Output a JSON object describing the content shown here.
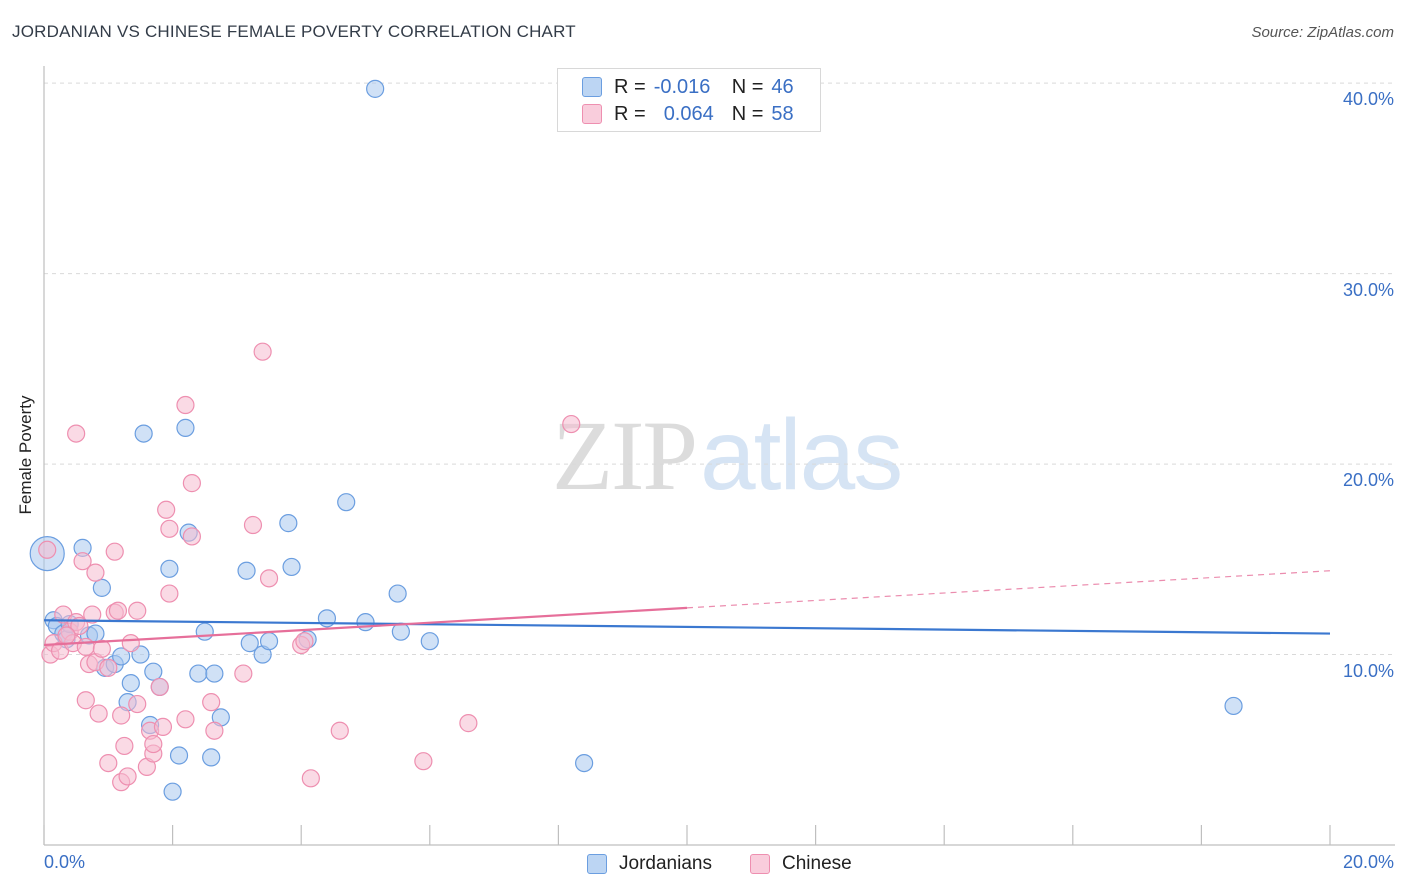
{
  "title": "JORDANIAN VS CHINESE FEMALE POVERTY CORRELATION CHART",
  "source": "Source: ZipAtlas.com",
  "watermark": {
    "zip": "ZIP",
    "atlas": "atlas"
  },
  "legend": {
    "rows": [
      {
        "r_label": "R =",
        "r_value": "-0.016",
        "n_label": "N =",
        "n_value": "46"
      },
      {
        "r_label": "R =",
        "r_value": "0.064",
        "n_label": "N =",
        "n_value": "58"
      }
    ]
  },
  "colors": {
    "blue_fill": "#a9c8ee",
    "blue_stroke": "#6b9ee0",
    "blue_line": "#3b78d0",
    "pink_fill": "#f6bcd0",
    "pink_stroke": "#ee8fb0",
    "pink_line": "#e66f9a",
    "grid": "#d9d9d9",
    "axis": "#bfbfbf"
  },
  "chart_data": {
    "type": "scatter",
    "title": "JORDANIAN VS CHINESE FEMALE POVERTY CORRELATION CHART",
    "xlabel": "",
    "ylabel": "Female Poverty",
    "xlim": [
      0,
      20
    ],
    "ylim": [
      0,
      40.9
    ],
    "x_tick_labels": [
      "0.0%",
      "20.0%"
    ],
    "y_ticks": [
      10,
      20,
      30,
      40
    ],
    "y_tick_labels": [
      "10.0%",
      "20.0%",
      "30.0%",
      "40.0%"
    ],
    "legend_position": "top-center",
    "series": [
      {
        "name": "Jordanians",
        "trend": {
          "x0": 0,
          "y0": 11.8,
          "x1": 20,
          "y1": 11.1,
          "dashed_from": null
        },
        "points": [
          [
            0.05,
            15.3,
            "big"
          ],
          [
            0.15,
            11.8
          ],
          [
            0.2,
            11.5
          ],
          [
            0.3,
            11.1
          ],
          [
            0.35,
            10.8
          ],
          [
            0.4,
            11.6
          ],
          [
            0.6,
            15.6
          ],
          [
            0.7,
            11.0
          ],
          [
            0.8,
            11.1
          ],
          [
            0.9,
            13.5
          ],
          [
            0.95,
            9.3
          ],
          [
            1.1,
            9.5
          ],
          [
            1.2,
            9.9
          ],
          [
            1.3,
            7.5
          ],
          [
            1.35,
            8.5
          ],
          [
            1.5,
            10.0
          ],
          [
            1.55,
            21.6
          ],
          [
            1.65,
            6.3
          ],
          [
            1.7,
            9.1
          ],
          [
            1.8,
            8.3
          ],
          [
            1.95,
            14.5
          ],
          [
            2.0,
            2.8
          ],
          [
            2.1,
            4.7
          ],
          [
            2.2,
            21.9
          ],
          [
            2.25,
            16.4
          ],
          [
            2.4,
            9.0
          ],
          [
            2.5,
            11.2
          ],
          [
            2.6,
            4.6
          ],
          [
            2.65,
            9.0
          ],
          [
            2.75,
            6.7
          ],
          [
            3.15,
            14.4
          ],
          [
            3.2,
            10.6
          ],
          [
            3.4,
            10.0
          ],
          [
            3.5,
            10.7
          ],
          [
            3.8,
            16.9
          ],
          [
            3.85,
            14.6
          ],
          [
            4.1,
            10.8
          ],
          [
            4.4,
            11.9
          ],
          [
            4.7,
            18.0
          ],
          [
            5.0,
            11.7
          ],
          [
            5.15,
            39.7
          ],
          [
            5.5,
            13.2
          ],
          [
            5.55,
            11.2
          ],
          [
            6.0,
            10.7
          ],
          [
            8.4,
            4.3
          ],
          [
            18.5,
            7.3
          ]
        ]
      },
      {
        "name": "Chinese",
        "trend": {
          "x0": 0,
          "y0": 10.5,
          "x1": 20,
          "y1": 14.4,
          "dashed_from": 10.0
        },
        "points": [
          [
            0.05,
            15.5
          ],
          [
            0.1,
            10.0
          ],
          [
            0.15,
            10.6
          ],
          [
            0.25,
            10.2
          ],
          [
            0.3,
            12.1
          ],
          [
            0.4,
            11.2
          ],
          [
            0.45,
            10.6
          ],
          [
            0.5,
            11.7
          ],
          [
            0.5,
            21.6
          ],
          [
            0.6,
            14.9
          ],
          [
            0.65,
            7.6
          ],
          [
            0.65,
            10.4
          ],
          [
            0.7,
            9.5
          ],
          [
            0.75,
            12.1
          ],
          [
            0.8,
            14.3
          ],
          [
            0.8,
            9.6
          ],
          [
            0.85,
            6.9
          ],
          [
            0.9,
            10.3
          ],
          [
            1.0,
            9.3
          ],
          [
            1.0,
            4.3
          ],
          [
            1.1,
            15.4
          ],
          [
            1.1,
            12.2
          ],
          [
            1.15,
            12.3
          ],
          [
            1.2,
            3.3
          ],
          [
            1.2,
            6.8
          ],
          [
            1.25,
            5.2
          ],
          [
            1.3,
            3.6
          ],
          [
            1.35,
            10.6
          ],
          [
            1.45,
            7.4
          ],
          [
            1.45,
            12.3
          ],
          [
            1.6,
            4.1
          ],
          [
            1.65,
            6.0
          ],
          [
            1.7,
            4.8
          ],
          [
            1.7,
            5.3
          ],
          [
            1.8,
            8.3
          ],
          [
            1.85,
            6.2
          ],
          [
            1.9,
            17.6
          ],
          [
            1.95,
            13.2
          ],
          [
            1.95,
            16.6
          ],
          [
            2.2,
            6.6
          ],
          [
            2.2,
            23.1
          ],
          [
            2.3,
            19.0
          ],
          [
            2.3,
            16.2
          ],
          [
            2.6,
            7.5
          ],
          [
            2.65,
            6.0
          ],
          [
            3.1,
            9.0
          ],
          [
            3.25,
            16.8
          ],
          [
            3.4,
            25.9
          ],
          [
            3.5,
            14.0
          ],
          [
            4.0,
            10.5
          ],
          [
            4.05,
            10.7
          ],
          [
            4.15,
            3.5
          ],
          [
            4.6,
            6.0
          ],
          [
            5.9,
            4.4
          ],
          [
            6.6,
            6.4
          ],
          [
            8.2,
            22.1
          ],
          [
            0.55,
            11.5
          ],
          [
            0.35,
            11.0
          ]
        ]
      }
    ]
  },
  "bottom_legend": [
    {
      "name": "Jordanians"
    },
    {
      "name": "Chinese"
    }
  ]
}
